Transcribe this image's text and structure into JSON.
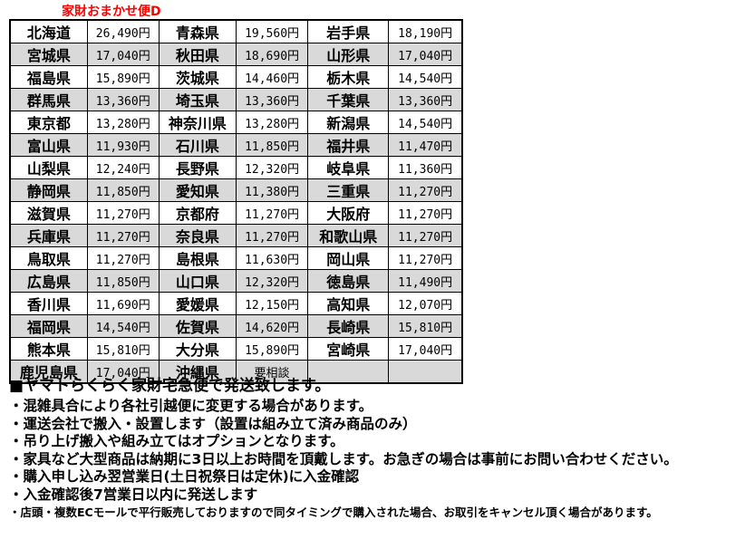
{
  "title": "家財おまかせ便D",
  "colors": {
    "title_red": "#ff0000",
    "row_shade": "#d9d9d9",
    "border": "#000000",
    "background": "#ffffff"
  },
  "table": {
    "columns": [
      "prefecture",
      "price",
      "prefecture",
      "price",
      "prefecture",
      "price"
    ],
    "special_value": "要相談",
    "rows": [
      [
        "北海道",
        "26,490円",
        "青森県",
        "19,560円",
        "岩手県",
        "18,190円"
      ],
      [
        "宮城県",
        "17,040円",
        "秋田県",
        "18,690円",
        "山形県",
        "17,040円"
      ],
      [
        "福島県",
        "15,890円",
        "茨城県",
        "14,460円",
        "栃木県",
        "14,540円"
      ],
      [
        "群馬県",
        "13,360円",
        "埼玉県",
        "13,360円",
        "千葉県",
        "13,360円"
      ],
      [
        "東京都",
        "13,280円",
        "神奈川県",
        "13,280円",
        "新潟県",
        "14,540円"
      ],
      [
        "富山県",
        "11,930円",
        "石川県",
        "11,850円",
        "福井県",
        "11,470円"
      ],
      [
        "山梨県",
        "12,240円",
        "長野県",
        "12,320円",
        "岐阜県",
        "11,360円"
      ],
      [
        "静岡県",
        "11,850円",
        "愛知県",
        "11,380円",
        "三重県",
        "11,270円"
      ],
      [
        "滋賀県",
        "11,270円",
        "京都府",
        "11,270円",
        "大阪府",
        "11,270円"
      ],
      [
        "兵庫県",
        "11,270円",
        "奈良県",
        "11,270円",
        "和歌山県",
        "11,270円"
      ],
      [
        "鳥取県",
        "11,270円",
        "島根県",
        "11,630円",
        "岡山県",
        "11,270円"
      ],
      [
        "広島県",
        "11,850円",
        "山口県",
        "12,320円",
        "徳島県",
        "11,490円"
      ],
      [
        "香川県",
        "11,690円",
        "愛媛県",
        "12,150円",
        "高知県",
        "12,070円"
      ],
      [
        "福岡県",
        "14,540円",
        "佐賀県",
        "14,620円",
        "長崎県",
        "15,810円"
      ],
      [
        "熊本県",
        "15,810円",
        "大分県",
        "15,890円",
        "宮崎県",
        "17,040円"
      ],
      [
        "鹿児島県",
        "17,040円",
        "沖縄県",
        "要相談",
        "",
        ""
      ]
    ]
  },
  "notes": {
    "heading": "■ヤマトらくらく家財宅急便で発送致します。",
    "bullets": [
      "・混雑具合により各社引越便に変更する場合があります。",
      "・運送会社で搬入・設置します（設置は組み立て済み商品のみ）",
      "・吊り上げ搬入や組み立てはオプションとなります。",
      "・家具など大型商品は納期に3日以上お時間を頂戴します。お急ぎの場合は事前にお問い合わせください。",
      "・購入申し込み翌営業日(土日祝祭日は定休)に入金確認",
      "・入金確認後7営業日以内に発送します"
    ],
    "disclaimer": "・店頭・複数ECモールで平行販売しておりますので同タイミングで購入された場合、お取引をキャンセル頂く場合があります。"
  }
}
